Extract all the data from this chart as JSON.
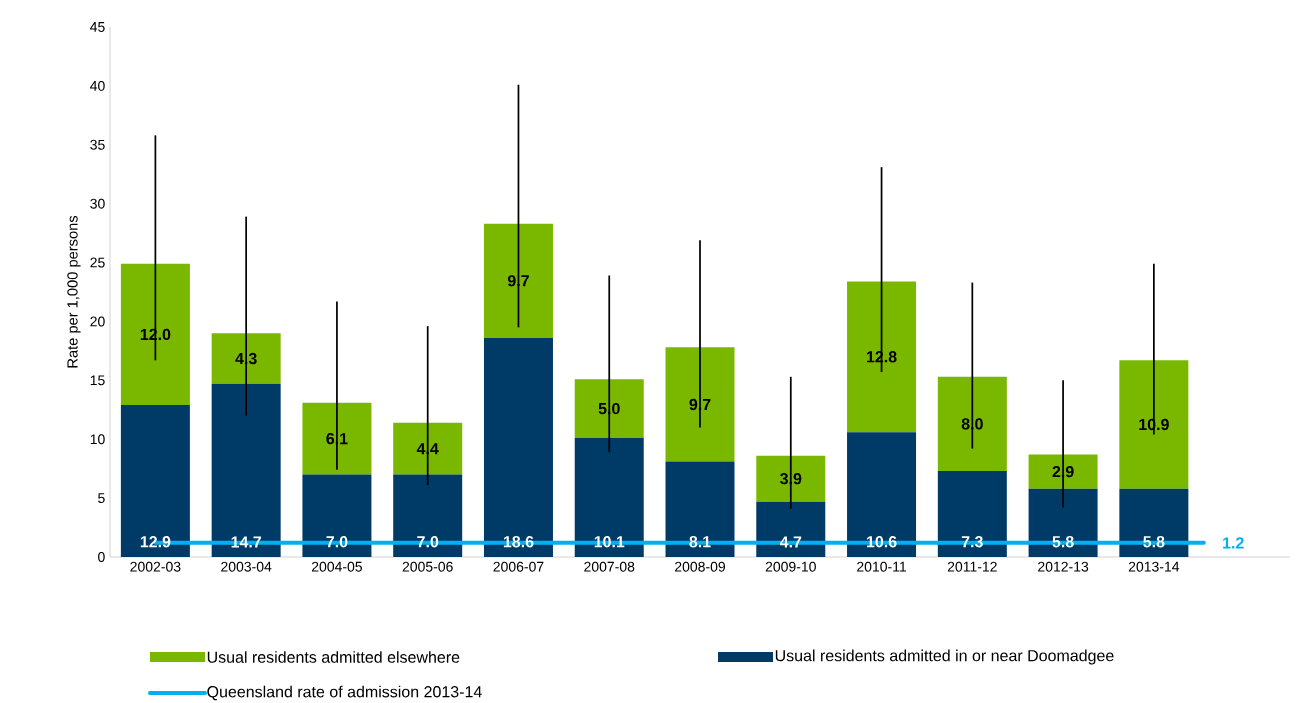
{
  "chart_data": {
    "type": "bar",
    "stacked": true,
    "ylabel": "Rate per 1,000 persons",
    "categories": [
      "2002-03",
      "2003-04",
      "2004-05",
      "2005-06",
      "2006-07",
      "2007-08",
      "2008-09",
      "2009-10",
      "2010-11",
      "2011-12",
      "2012-13",
      "2013-14"
    ],
    "series": [
      {
        "name": "Usual residents admitted in or near Doomadgee",
        "color": "#003a66",
        "values": [
          12.9,
          14.7,
          7.0,
          7.0,
          18.6,
          10.1,
          8.1,
          4.7,
          10.6,
          7.3,
          5.8,
          5.8
        ],
        "value_labels": [
          "12.9",
          "14.7",
          "7.0",
          "7.0",
          "18.6",
          "10.1",
          "8.1",
          "4.7",
          "10.6",
          "7.3",
          "5.8",
          "5.8"
        ]
      },
      {
        "name": "Usual residents admitted elsewhere",
        "color": "#7ab800",
        "values": [
          12.0,
          4.3,
          6.1,
          4.4,
          9.7,
          5.0,
          9.7,
          3.9,
          12.8,
          8.0,
          2.9,
          10.9
        ],
        "value_labels": [
          "12.0",
          "4.3",
          "6.1",
          "4.4",
          "9.7",
          "5.0",
          "9.7",
          "3.9",
          "12.8",
          "8.0",
          "2.9",
          "10.9"
        ],
        "errors": [
          [
            16.7,
            35.8
          ],
          [
            12.0,
            28.9
          ],
          [
            7.4,
            21.7
          ],
          [
            6.1,
            19.6
          ],
          [
            19.5,
            40.1
          ],
          [
            8.9,
            23.9
          ],
          [
            11.0,
            26.9
          ],
          [
            4.1,
            15.3
          ],
          [
            15.7,
            33.1
          ],
          [
            9.2,
            23.3
          ],
          [
            4.2,
            15.0
          ],
          [
            10.4,
            24.9
          ]
        ]
      }
    ],
    "ref_lines": [
      {
        "axis": "y",
        "value": 1.2,
        "label": "Queensland rate of admission 2013-14",
        "color": "#00b0f0"
      }
    ],
    "annotations": [
      "1.2"
    ],
    "ylim": [
      0,
      45
    ],
    "yticks": [
      0,
      5,
      10,
      15,
      20,
      25,
      30,
      35,
      40,
      45
    ],
    "grid": false,
    "legend": "bottom"
  }
}
